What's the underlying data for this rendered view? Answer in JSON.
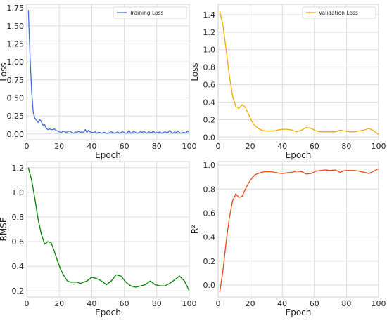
{
  "chart_data": [
    {
      "type": "line",
      "xlabel": "Epoch",
      "ylabel": "Loss",
      "xlim": [
        0,
        100
      ],
      "ylim": [
        -0.08,
        1.8
      ],
      "xticks": [
        0,
        20,
        40,
        60,
        80,
        100
      ],
      "yticks": [
        0.0,
        0.25,
        0.5,
        0.75,
        1.0,
        1.25,
        1.5,
        1.75
      ],
      "ytick_labels": [
        "0.00",
        "0.25",
        "0.50",
        "0.75",
        "1.00",
        "1.25",
        "1.50",
        "1.75"
      ],
      "grid": true,
      "legend": "top-right",
      "series": [
        {
          "name": "Training Loss",
          "color": "#4169e1",
          "x": [
            1,
            2,
            3,
            4,
            5,
            6,
            7,
            8,
            9,
            10,
            11,
            12,
            13,
            14,
            15,
            16,
            17,
            18,
            19,
            20,
            21,
            22,
            23,
            24,
            25,
            26,
            27,
            28,
            29,
            30,
            31,
            32,
            33,
            34,
            35,
            36,
            37,
            38,
            39,
            40,
            41,
            42,
            43,
            44,
            45,
            46,
            47,
            48,
            49,
            50,
            51,
            52,
            53,
            54,
            55,
            56,
            57,
            58,
            59,
            60,
            61,
            62,
            63,
            64,
            65,
            66,
            67,
            68,
            69,
            70,
            71,
            72,
            73,
            74,
            75,
            76,
            77,
            78,
            79,
            80,
            81,
            82,
            83,
            84,
            85,
            86,
            87,
            88,
            89,
            90,
            91,
            92,
            93,
            94,
            95,
            96,
            97,
            98,
            99,
            100
          ],
          "y": [
            1.72,
            1.1,
            0.6,
            0.3,
            0.22,
            0.19,
            0.16,
            0.2,
            0.17,
            0.12,
            0.13,
            0.08,
            0.06,
            0.07,
            0.06,
            0.06,
            0.07,
            0.05,
            0.04,
            0.03,
            0.02,
            0.03,
            0.04,
            0.02,
            0.03,
            0.04,
            0.03,
            0.02,
            0.01,
            0.03,
            0.02,
            0.04,
            0.02,
            0.03,
            0.02,
            0.06,
            0.02,
            0.05,
            0.03,
            0.02,
            0.02,
            0.03,
            0.01,
            0.02,
            0.02,
            0.01,
            0.02,
            0.02,
            0.01,
            0.01,
            0.02,
            0.03,
            0.02,
            0.01,
            0.02,
            0.03,
            0.01,
            0.02,
            0.03,
            0.02,
            0.01,
            0.02,
            0.05,
            0.01,
            0.02,
            0.04,
            0.02,
            0.01,
            0.02,
            0.03,
            0.02,
            0.04,
            0.02,
            0.01,
            0.03,
            0.02,
            0.02,
            0.04,
            0.01,
            0.02,
            0.02,
            0.03,
            0.01,
            0.02,
            0.03,
            0.02,
            0.02,
            0.05,
            0.02,
            0.01,
            0.03,
            0.02,
            0.04,
            0.02,
            0.01,
            0.02,
            0.02,
            0.01,
            0.04,
            0.02
          ]
        }
      ]
    },
    {
      "type": "line",
      "xlabel": "Epoch",
      "ylabel": "Loss",
      "xlim": [
        0,
        100
      ],
      "ylim": [
        -0.03,
        1.52
      ],
      "xticks": [
        0,
        20,
        40,
        60,
        80,
        100
      ],
      "yticks": [
        0.0,
        0.2,
        0.4,
        0.6,
        0.8,
        1.0,
        1.2,
        1.4
      ],
      "ytick_labels": [
        "0.0",
        "0.2",
        "0.4",
        "0.6",
        "0.8",
        "1.0",
        "1.2",
        "1.4"
      ],
      "grid": true,
      "legend": "top-right",
      "series": [
        {
          "name": "Validation Loss",
          "color": "#f5a800",
          "x": [
            1,
            3,
            5,
            7,
            9,
            11,
            13,
            15,
            17,
            19,
            21,
            23,
            25,
            27,
            29,
            31,
            33,
            35,
            37,
            40,
            43,
            46,
            49,
            52,
            55,
            58,
            61,
            64,
            67,
            70,
            73,
            76,
            79,
            82,
            85,
            88,
            91,
            94,
            97,
            100
          ],
          "y": [
            1.44,
            1.28,
            1.0,
            0.7,
            0.47,
            0.35,
            0.33,
            0.37,
            0.34,
            0.26,
            0.18,
            0.13,
            0.1,
            0.08,
            0.07,
            0.07,
            0.07,
            0.07,
            0.08,
            0.09,
            0.09,
            0.08,
            0.06,
            0.08,
            0.11,
            0.1,
            0.07,
            0.06,
            0.06,
            0.06,
            0.06,
            0.08,
            0.07,
            0.06,
            0.06,
            0.07,
            0.08,
            0.1,
            0.07,
            0.03
          ]
        }
      ]
    },
    {
      "type": "line",
      "xlabel": "Epoch",
      "ylabel": "RMSE",
      "xlim": [
        0,
        100
      ],
      "ylim": [
        0.15,
        1.25
      ],
      "xticks": [
        0,
        20,
        40,
        60,
        80,
        100
      ],
      "yticks": [
        0.2,
        0.4,
        0.6,
        0.8,
        1.0,
        1.2
      ],
      "ytick_labels": [
        "0.2",
        "0.4",
        "0.6",
        "0.8",
        "1.0",
        "1.2"
      ],
      "grid": true,
      "legend": "none",
      "series": [
        {
          "color": "#008000",
          "x": [
            1,
            3,
            5,
            7,
            9,
            11,
            13,
            15,
            17,
            19,
            21,
            23,
            25,
            27,
            29,
            31,
            33,
            35,
            37,
            40,
            43,
            46,
            49,
            52,
            55,
            58,
            61,
            64,
            67,
            70,
            73,
            76,
            79,
            82,
            85,
            88,
            91,
            94,
            97,
            100
          ],
          "y": [
            1.2,
            1.1,
            0.95,
            0.78,
            0.66,
            0.58,
            0.6,
            0.59,
            0.52,
            0.44,
            0.37,
            0.32,
            0.28,
            0.27,
            0.27,
            0.27,
            0.26,
            0.27,
            0.28,
            0.31,
            0.3,
            0.28,
            0.25,
            0.28,
            0.33,
            0.32,
            0.27,
            0.24,
            0.23,
            0.24,
            0.25,
            0.28,
            0.25,
            0.24,
            0.24,
            0.26,
            0.29,
            0.32,
            0.28,
            0.2
          ]
        }
      ]
    },
    {
      "type": "line",
      "xlabel": "Epoch",
      "ylabel": "R²",
      "xlim": [
        0,
        100
      ],
      "ylim": [
        -0.1,
        1.03
      ],
      "xticks": [
        0,
        20,
        40,
        60,
        80,
        100
      ],
      "yticks": [
        0.0,
        0.2,
        0.4,
        0.6,
        0.8,
        1.0
      ],
      "ytick_labels": [
        "0.0",
        "0.2",
        "0.4",
        "0.6",
        "0.8",
        "1.0"
      ],
      "grid": true,
      "legend": "none",
      "series": [
        {
          "color": "#e84a16",
          "x": [
            1,
            3,
            5,
            7,
            9,
            11,
            13,
            15,
            17,
            19,
            21,
            23,
            25,
            27,
            29,
            31,
            33,
            35,
            37,
            40,
            43,
            46,
            49,
            52,
            55,
            58,
            61,
            64,
            67,
            70,
            73,
            76,
            79,
            82,
            85,
            88,
            91,
            94,
            97,
            100
          ],
          "y": [
            -0.06,
            0.12,
            0.36,
            0.56,
            0.7,
            0.76,
            0.73,
            0.74,
            0.8,
            0.85,
            0.89,
            0.92,
            0.93,
            0.94,
            0.945,
            0.945,
            0.945,
            0.94,
            0.935,
            0.93,
            0.935,
            0.94,
            0.95,
            0.945,
            0.925,
            0.93,
            0.95,
            0.955,
            0.96,
            0.955,
            0.96,
            0.94,
            0.955,
            0.955,
            0.955,
            0.95,
            0.94,
            0.93,
            0.95,
            0.97
          ]
        }
      ]
    }
  ]
}
